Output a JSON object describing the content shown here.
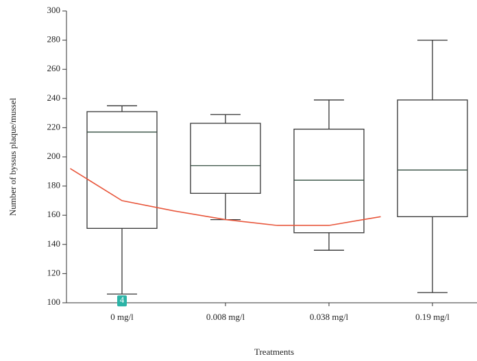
{
  "chart_data": {
    "type": "box",
    "y_label": "Number of byssus plaque/mussel",
    "x_label": "Treatments",
    "categories": [
      "0 mg/l",
      "0.008 mg/l",
      "0.038 mg/l",
      "0.19 mg/l"
    ],
    "boxes": [
      {
        "min": 106,
        "q1": 151,
        "median": 217,
        "q3": 231,
        "max": 235
      },
      {
        "min": 157,
        "q1": 175,
        "median": 194,
        "q3": 223,
        "max": 229
      },
      {
        "min": 136,
        "q1": 148,
        "median": 184,
        "q3": 219,
        "max": 239
      },
      {
        "min": 107,
        "q1": 159,
        "median": 191,
        "q3": 239,
        "max": 280
      }
    ],
    "trend": {
      "color": "#e8553a",
      "x": [
        -0.5,
        0,
        0.5,
        1,
        1.5,
        2,
        2.5
      ],
      "values": [
        192,
        170,
        163,
        157,
        153,
        153,
        159
      ]
    },
    "annotation": "4",
    "ylim": [
      100,
      300
    ],
    "yticks": [
      100,
      120,
      140,
      160,
      180,
      200,
      220,
      240,
      260,
      280,
      300
    ]
  }
}
